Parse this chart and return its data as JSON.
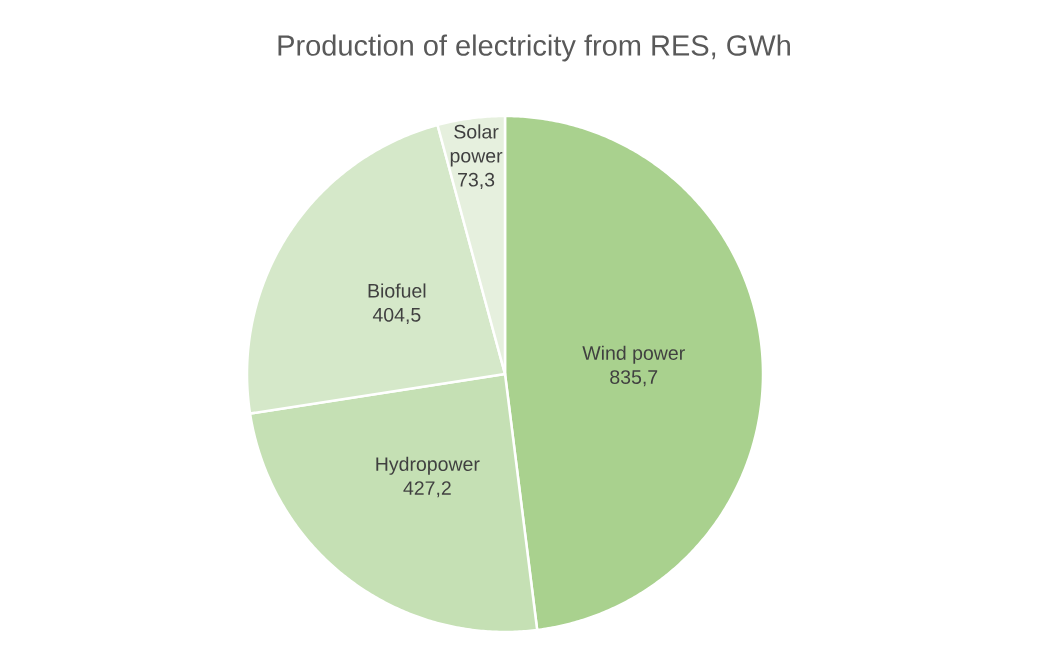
{
  "chart_data": {
    "type": "pie",
    "title": "Production of electricity from RES, GWh",
    "categories": [
      "Wind power",
      "Hydropower",
      "Biofuel",
      "Solar power"
    ],
    "values": [
      835.7,
      427.2,
      404.5,
      73.3
    ],
    "colors": [
      "#a9d18e",
      "#c5e0b4",
      "#d5e8c9",
      "#e6f0de"
    ],
    "value_labels": [
      "835,7",
      "427,2",
      "404,5",
      "73,3"
    ]
  }
}
